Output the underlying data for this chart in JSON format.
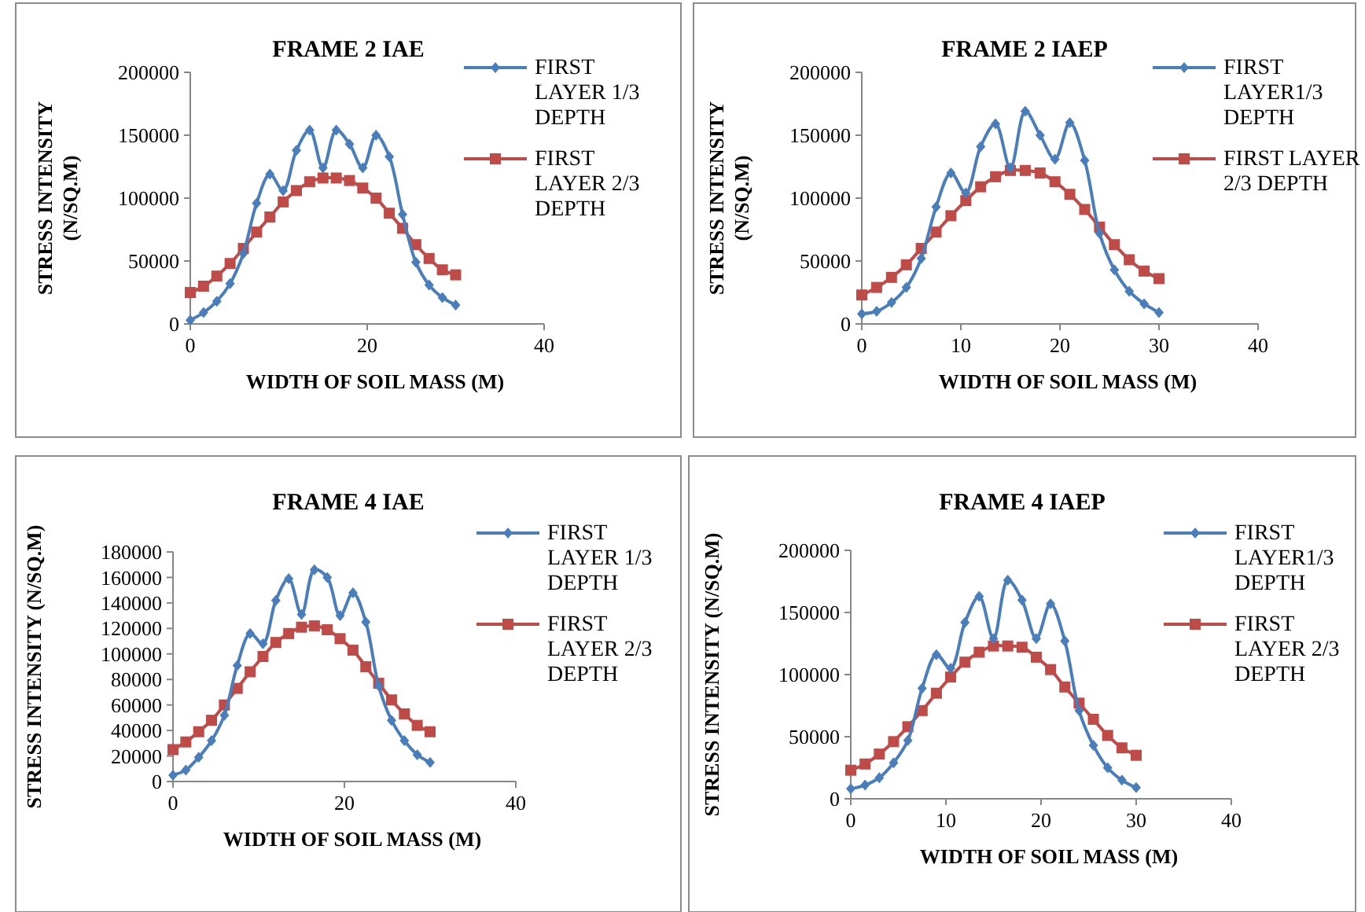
{
  "chart_data": [
    {
      "type": "line",
      "title": "FRAME 2 IAE",
      "xlabel": "WIDTH OF SOIL MASS (M)",
      "ylabel": "STRESS INTENSITY (N/SQ.M)",
      "x": [
        0,
        1.5,
        3,
        4.5,
        6,
        7.5,
        9,
        10.5,
        12,
        13.5,
        15,
        16.5,
        18,
        19.5,
        21,
        22.5,
        24,
        25.5,
        27,
        28.5,
        30
      ],
      "xlim": [
        0,
        40
      ],
      "xticks": [
        0,
        20,
        40
      ],
      "ylim": [
        0,
        200000
      ],
      "yticks": [
        0,
        50000,
        100000,
        150000,
        200000
      ],
      "grid": false,
      "legend": "right",
      "series": [
        {
          "name": "FIRST LAYER 1/3 DEPTH",
          "color": "#4a7ebb",
          "marker": "diamond",
          "values": [
            3000,
            9000,
            18000,
            32000,
            56000,
            96000,
            119000,
            106000,
            138000,
            154000,
            124000,
            154000,
            143000,
            124000,
            150000,
            133000,
            87000,
            49000,
            31000,
            21000,
            15000
          ]
        },
        {
          "name": "FIRST LAYER 2/3 DEPTH",
          "color": "#be4b48",
          "marker": "square",
          "values": [
            25000,
            30000,
            38000,
            48000,
            60000,
            73000,
            85000,
            97000,
            106000,
            113000,
            116000,
            116000,
            114000,
            108000,
            100000,
            88000,
            76000,
            63000,
            52000,
            43000,
            39000
          ]
        }
      ]
    },
    {
      "type": "line",
      "title": "FRAME 2 IAEP",
      "xlabel": "WIDTH OF SOIL MASS (M)",
      "ylabel": "STRESS INTENSITY (N/SQ.M)",
      "x": [
        0,
        1.5,
        3,
        4.5,
        6,
        7.5,
        9,
        10.5,
        12,
        13.5,
        15,
        16.5,
        18,
        19.5,
        21,
        22.5,
        24,
        25.5,
        27,
        28.5,
        30
      ],
      "xlim": [
        0,
        40
      ],
      "xticks": [
        0,
        10,
        20,
        30,
        40
      ],
      "ylim": [
        0,
        200000
      ],
      "yticks": [
        0,
        50000,
        100000,
        150000,
        200000
      ],
      "grid": false,
      "legend": "right",
      "series": [
        {
          "name": "FIRST LAYER1/3 DEPTH",
          "color": "#4a7ebb",
          "marker": "diamond",
          "values": [
            8000,
            10000,
            17000,
            29000,
            52000,
            93000,
            120000,
            104000,
            141000,
            159000,
            124000,
            169000,
            150000,
            131000,
            160000,
            130000,
            72000,
            43000,
            26000,
            16000,
            9000
          ]
        },
        {
          "name": "FIRST LAYER 2/3 DEPTH",
          "color": "#be4b48",
          "marker": "square",
          "values": [
            23000,
            29000,
            37000,
            47000,
            60000,
            73000,
            86000,
            98000,
            109000,
            117000,
            122000,
            122000,
            120000,
            113000,
            103000,
            91000,
            77000,
            63000,
            51000,
            42000,
            36000
          ]
        }
      ]
    },
    {
      "type": "line",
      "title": "FRAME 4 IAE",
      "xlabel": "WIDTH OF SOIL MASS (M)",
      "ylabel": "STRESS INTENSITY (N/SQ.M)",
      "x": [
        0,
        1.5,
        3,
        4.5,
        6,
        7.5,
        9,
        10.5,
        12,
        13.5,
        15,
        16.5,
        18,
        19.5,
        21,
        22.5,
        24,
        25.5,
        27,
        28.5,
        30
      ],
      "xlim": [
        0,
        40
      ],
      "xticks": [
        0,
        20,
        40
      ],
      "ylim": [
        0,
        180000
      ],
      "yticks": [
        0,
        20000,
        40000,
        60000,
        80000,
        100000,
        120000,
        140000,
        160000,
        180000
      ],
      "grid": false,
      "legend": "right",
      "series": [
        {
          "name": "FIRST LAYER 1/3 DEPTH",
          "color": "#4a7ebb",
          "marker": "diamond",
          "values": [
            5000,
            9000,
            19000,
            32000,
            52000,
            91000,
            116000,
            108000,
            142000,
            159000,
            131000,
            166000,
            160000,
            130000,
            148000,
            125000,
            75000,
            48000,
            32000,
            21000,
            15000
          ]
        },
        {
          "name": "FIRST LAYER 2/3 DEPTH",
          "color": "#be4b48",
          "marker": "square",
          "values": [
            25000,
            31000,
            39000,
            48000,
            60000,
            73000,
            86000,
            98000,
            109000,
            116000,
            121000,
            122000,
            119000,
            112000,
            103000,
            90000,
            77000,
            64000,
            53000,
            44000,
            39000
          ]
        }
      ]
    },
    {
      "type": "line",
      "title": "FRAME 4 IAEP",
      "xlabel": "WIDTH OF SOIL MASS (M)",
      "ylabel": "STRESS INTENSITY (N/SQ.M)",
      "x": [
        0,
        1.5,
        3,
        4.5,
        6,
        7.5,
        9,
        10.5,
        12,
        13.5,
        15,
        16.5,
        18,
        19.5,
        21,
        22.5,
        24,
        25.5,
        27,
        28.5,
        30
      ],
      "xlim": [
        0,
        40
      ],
      "xticks": [
        0,
        10,
        20,
        30,
        40
      ],
      "ylim": [
        0,
        200000
      ],
      "yticks": [
        0,
        50000,
        100000,
        150000,
        200000
      ],
      "grid": false,
      "legend": "right",
      "series": [
        {
          "name": "FIRST LAYER1/3 DEPTH",
          "color": "#4a7ebb",
          "marker": "diamond",
          "values": [
            8000,
            11000,
            17000,
            29000,
            47000,
            89000,
            116000,
            105000,
            142000,
            163000,
            129000,
            176000,
            160000,
            129000,
            157000,
            127000,
            71000,
            43000,
            25000,
            15000,
            9000
          ]
        },
        {
          "name": "FIRST LAYER 2/3 DEPTH",
          "color": "#be4b48",
          "marker": "square",
          "values": [
            23000,
            28000,
            36000,
            46000,
            58000,
            71000,
            85000,
            98000,
            110000,
            118000,
            123000,
            123000,
            122000,
            114000,
            104000,
            90000,
            77000,
            64000,
            51000,
            41000,
            35000
          ]
        }
      ]
    }
  ]
}
